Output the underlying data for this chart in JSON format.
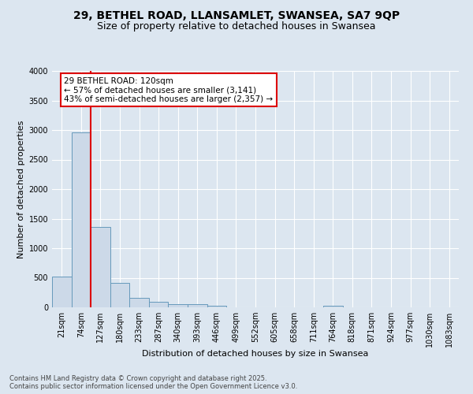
{
  "title_line1": "29, BETHEL ROAD, LLANSAMLET, SWANSEA, SA7 9QP",
  "title_line2": "Size of property relative to detached houses in Swansea",
  "xlabel": "Distribution of detached houses by size in Swansea",
  "ylabel": "Number of detached properties",
  "categories": [
    "21sqm",
    "74sqm",
    "127sqm",
    "180sqm",
    "233sqm",
    "287sqm",
    "340sqm",
    "393sqm",
    "446sqm",
    "499sqm",
    "552sqm",
    "605sqm",
    "658sqm",
    "711sqm",
    "764sqm",
    "818sqm",
    "871sqm",
    "924sqm",
    "977sqm",
    "1030sqm",
    "1083sqm"
  ],
  "values": [
    520,
    2960,
    1360,
    420,
    165,
    90,
    60,
    55,
    30,
    0,
    0,
    0,
    0,
    0,
    30,
    0,
    0,
    0,
    0,
    0,
    0
  ],
  "bar_color": "#ccd9e8",
  "bar_edge_color": "#6699bb",
  "vline_color": "#dd0000",
  "vline_x": 1.5,
  "annotation_line1": "29 BETHEL ROAD: 120sqm",
  "annotation_line2": "← 57% of detached houses are smaller (3,141)",
  "annotation_line3": "43% of semi-detached houses are larger (2,357) →",
  "annotation_box_edgecolor": "#dd0000",
  "ylim_max": 4000,
  "yticks": [
    0,
    500,
    1000,
    1500,
    2000,
    2500,
    3000,
    3500,
    4000
  ],
  "bg_color": "#dce6f0",
  "grid_color": "#ffffff",
  "title1_fontsize": 10,
  "title2_fontsize": 9,
  "axis_label_fontsize": 8,
  "tick_fontsize": 7,
  "annotation_fontsize": 7.5,
  "footer_fontsize": 6,
  "footer_line1": "Contains HM Land Registry data © Crown copyright and database right 2025.",
  "footer_line2": "Contains public sector information licensed under the Open Government Licence v3.0."
}
